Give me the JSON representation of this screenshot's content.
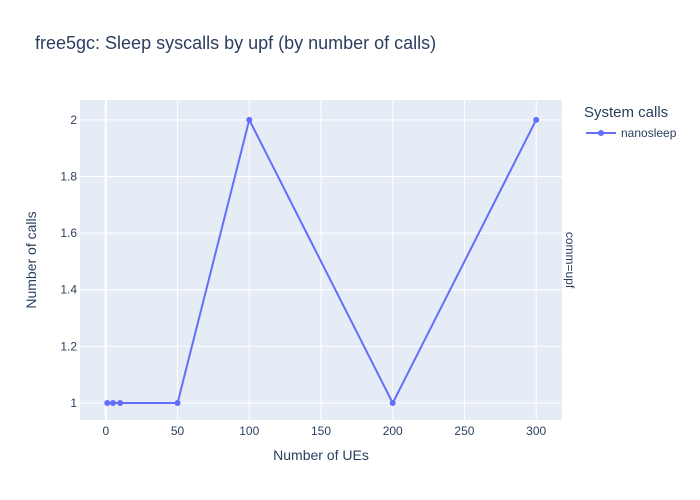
{
  "chart_data": {
    "type": "line",
    "title": "free5gc: Sleep syscalls by upf (by number of calls)",
    "xlabel": "Number of UEs",
    "ylabel": "Number of calls",
    "facet_label": "comm=upf",
    "legend_title": "System calls",
    "legend_position": "right",
    "grid": true,
    "xlim": [
      -18,
      318
    ],
    "ylim": [
      0.94,
      2.07
    ],
    "x_ticks": [
      0,
      50,
      100,
      150,
      200,
      250,
      300
    ],
    "y_ticks": [
      1,
      1.2,
      1.4,
      1.6,
      1.8,
      2
    ],
    "x_tick_labels": [
      "0",
      "50",
      "100",
      "150",
      "200",
      "250",
      "300"
    ],
    "y_tick_labels": [
      "1",
      "1.2",
      "1.4",
      "1.6",
      "1.8",
      "2"
    ],
    "series": [
      {
        "name": "nanosleep",
        "color": "#636efa",
        "x": [
          1,
          5,
          10,
          50,
          100,
          200,
          300
        ],
        "y": [
          1,
          1,
          1,
          1,
          2,
          1,
          2
        ]
      }
    ]
  },
  "colors": {
    "plot_background": "#e5ecf6",
    "grid": "#ffffff",
    "text": "#2a3f5f",
    "facet_text": "#2a3f5f"
  }
}
